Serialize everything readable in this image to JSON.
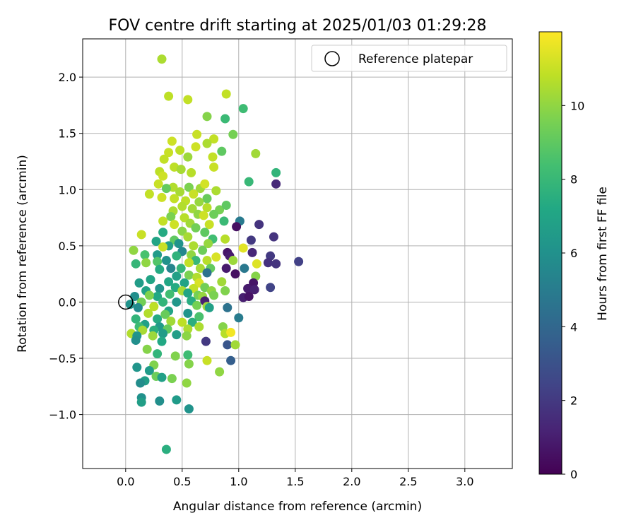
{
  "chart_data": {
    "type": "scatter",
    "title": "FOV centre drift starting at 2025/01/03 01:29:28",
    "xlabel": "Angular distance from reference (arcmin)",
    "ylabel": "Rotation from reference (arcmin)",
    "xlim": [
      -0.38,
      3.42
    ],
    "ylim": [
      -1.48,
      2.34
    ],
    "xticks": [
      0.0,
      0.5,
      1.0,
      1.5,
      2.0,
      2.5,
      3.0
    ],
    "xtick_labels": [
      "0.0",
      "0.5",
      "1.0",
      "1.5",
      "2.0",
      "2.5",
      "3.0"
    ],
    "yticks": [
      -1.0,
      -0.5,
      0.0,
      0.5,
      1.0,
      1.5,
      2.0
    ],
    "ytick_labels": [
      "−1.0",
      "−0.5",
      "0.0",
      "0.5",
      "1.0",
      "1.5",
      "2.0"
    ],
    "grid": true,
    "legend": {
      "position": "top-right",
      "entries": [
        "Reference platepar"
      ]
    },
    "reference_point": {
      "x": 0.0,
      "y": 0.0
    },
    "colorbar": {
      "label": "Hours from first FF file",
      "range": [
        0,
        12
      ],
      "ticks": [
        0,
        2,
        4,
        6,
        8,
        10
      ],
      "tick_labels": [
        "0",
        "2",
        "4",
        "6",
        "8",
        "10"
      ],
      "colormap": "viridis"
    },
    "points": [
      {
        "x": 0.32,
        "y": 2.16,
        "h": 10.5
      },
      {
        "x": 0.38,
        "y": 1.83,
        "h": 10.8
      },
      {
        "x": 0.55,
        "y": 1.8,
        "h": 10.9
      },
      {
        "x": 0.89,
        "y": 1.85,
        "h": 10.9
      },
      {
        "x": 1.04,
        "y": 1.72,
        "h": 8.2
      },
      {
        "x": 0.88,
        "y": 1.63,
        "h": 8.1
      },
      {
        "x": 0.72,
        "y": 1.65,
        "h": 9.8
      },
      {
        "x": 0.95,
        "y": 1.49,
        "h": 9.5
      },
      {
        "x": 0.63,
        "y": 1.49,
        "h": 11.0
      },
      {
        "x": 0.78,
        "y": 1.45,
        "h": 10.9
      },
      {
        "x": 0.41,
        "y": 1.43,
        "h": 11.1
      },
      {
        "x": 0.85,
        "y": 1.34,
        "h": 9.0
      },
      {
        "x": 1.15,
        "y": 1.32,
        "h": 10.3
      },
      {
        "x": 0.38,
        "y": 1.33,
        "h": 11.0
      },
      {
        "x": 0.48,
        "y": 1.35,
        "h": 10.8
      },
      {
        "x": 0.62,
        "y": 1.38,
        "h": 11.1
      },
      {
        "x": 0.72,
        "y": 1.41,
        "h": 10.5
      },
      {
        "x": 0.34,
        "y": 1.27,
        "h": 10.9
      },
      {
        "x": 0.55,
        "y": 1.29,
        "h": 10.2
      },
      {
        "x": 0.43,
        "y": 1.2,
        "h": 10.8
      },
      {
        "x": 0.77,
        "y": 1.29,
        "h": 10.9
      },
      {
        "x": 0.78,
        "y": 1.2,
        "h": 11.0
      },
      {
        "x": 1.33,
        "y": 1.15,
        "h": 7.8
      },
      {
        "x": 0.3,
        "y": 1.16,
        "h": 10.8
      },
      {
        "x": 0.49,
        "y": 1.18,
        "h": 10.4
      },
      {
        "x": 0.58,
        "y": 1.15,
        "h": 10.7
      },
      {
        "x": 0.33,
        "y": 1.12,
        "h": 11.1
      },
      {
        "x": 1.09,
        "y": 1.07,
        "h": 8.0
      },
      {
        "x": 1.33,
        "y": 1.05,
        "h": 1.4
      },
      {
        "x": 0.29,
        "y": 1.05,
        "h": 11.0
      },
      {
        "x": 0.42,
        "y": 1.02,
        "h": 10.6
      },
      {
        "x": 0.36,
        "y": 1.01,
        "h": 9.1
      },
      {
        "x": 0.56,
        "y": 1.02,
        "h": 9.6
      },
      {
        "x": 0.66,
        "y": 1.01,
        "h": 10.3
      },
      {
        "x": 0.7,
        "y": 1.05,
        "h": 11.2
      },
      {
        "x": 0.8,
        "y": 0.99,
        "h": 10.5
      },
      {
        "x": 0.21,
        "y": 0.96,
        "h": 10.9
      },
      {
        "x": 0.6,
        "y": 0.96,
        "h": 11.0
      },
      {
        "x": 0.48,
        "y": 0.98,
        "h": 10.4
      },
      {
        "x": 0.32,
        "y": 0.93,
        "h": 11.1
      },
      {
        "x": 0.43,
        "y": 0.92,
        "h": 10.9
      },
      {
        "x": 0.53,
        "y": 0.9,
        "h": 10.8
      },
      {
        "x": 0.72,
        "y": 0.92,
        "h": 9.2
      },
      {
        "x": 0.65,
        "y": 0.89,
        "h": 10.1
      },
      {
        "x": 0.5,
        "y": 0.85,
        "h": 10.6
      },
      {
        "x": 0.59,
        "y": 0.83,
        "h": 10.3
      },
      {
        "x": 0.42,
        "y": 0.81,
        "h": 10.5
      },
      {
        "x": 0.72,
        "y": 0.84,
        "h": 10.7
      },
      {
        "x": 0.83,
        "y": 0.82,
        "h": 9.5
      },
      {
        "x": 0.89,
        "y": 0.86,
        "h": 9.0
      },
      {
        "x": 0.78,
        "y": 0.78,
        "h": 9.3
      },
      {
        "x": 0.64,
        "y": 0.78,
        "h": 10.0
      },
      {
        "x": 0.52,
        "y": 0.75,
        "h": 10.7
      },
      {
        "x": 0.4,
        "y": 0.76,
        "h": 9.6
      },
      {
        "x": 0.69,
        "y": 0.77,
        "h": 11.1
      },
      {
        "x": 0.33,
        "y": 0.72,
        "h": 10.9
      },
      {
        "x": 0.43,
        "y": 0.69,
        "h": 11.1
      },
      {
        "x": 0.57,
        "y": 0.7,
        "h": 10.3
      },
      {
        "x": 0.74,
        "y": 0.69,
        "h": 11.0
      },
      {
        "x": 0.87,
        "y": 0.72,
        "h": 8.1
      },
      {
        "x": 1.01,
        "y": 0.72,
        "h": 4.9
      },
      {
        "x": 0.98,
        "y": 0.67,
        "h": 0.5
      },
      {
        "x": 1.18,
        "y": 0.69,
        "h": 1.8
      },
      {
        "x": 0.62,
        "y": 0.66,
        "h": 9.4
      },
      {
        "x": 0.5,
        "y": 0.63,
        "h": 9.9
      },
      {
        "x": 0.7,
        "y": 0.62,
        "h": 9.0
      },
      {
        "x": 0.33,
        "y": 0.62,
        "h": 7.3
      },
      {
        "x": 0.14,
        "y": 0.6,
        "h": 11.0
      },
      {
        "x": 0.27,
        "y": 0.54,
        "h": 7.0
      },
      {
        "x": 0.43,
        "y": 0.55,
        "h": 9.0
      },
      {
        "x": 0.55,
        "y": 0.58,
        "h": 10.4
      },
      {
        "x": 0.77,
        "y": 0.56,
        "h": 8.3
      },
      {
        "x": 0.88,
        "y": 0.56,
        "h": 10.7
      },
      {
        "x": 1.11,
        "y": 0.55,
        "h": 2.0
      },
      {
        "x": 1.31,
        "y": 0.58,
        "h": 1.8
      },
      {
        "x": 0.38,
        "y": 0.5,
        "h": 6.8
      },
      {
        "x": 0.47,
        "y": 0.52,
        "h": 6.1
      },
      {
        "x": 0.6,
        "y": 0.5,
        "h": 10.5
      },
      {
        "x": 0.73,
        "y": 0.52,
        "h": 10.1
      },
      {
        "x": 0.33,
        "y": 0.49,
        "h": 11.0
      },
      {
        "x": 1.04,
        "y": 0.48,
        "h": 11.5
      },
      {
        "x": 0.07,
        "y": 0.46,
        "h": 10.0
      },
      {
        "x": 0.5,
        "y": 0.45,
        "h": 5.5
      },
      {
        "x": 0.68,
        "y": 0.46,
        "h": 9.3
      },
      {
        "x": 0.9,
        "y": 0.44,
        "h": 0.7
      },
      {
        "x": 1.12,
        "y": 0.44,
        "h": 1.3
      },
      {
        "x": 0.17,
        "y": 0.42,
        "h": 8.5
      },
      {
        "x": 0.28,
        "y": 0.42,
        "h": 6.5
      },
      {
        "x": 0.45,
        "y": 0.41,
        "h": 7.7
      },
      {
        "x": 0.58,
        "y": 0.42,
        "h": 10.0
      },
      {
        "x": 0.8,
        "y": 0.4,
        "h": 11.3
      },
      {
        "x": 0.92,
        "y": 0.41,
        "h": 0.9
      },
      {
        "x": 1.28,
        "y": 0.41,
        "h": 2.0
      },
      {
        "x": 0.95,
        "y": 0.37,
        "h": 10.2
      },
      {
        "x": 0.72,
        "y": 0.37,
        "h": 10.7
      },
      {
        "x": 0.62,
        "y": 0.37,
        "h": 8.0
      },
      {
        "x": 0.36,
        "y": 0.37,
        "h": 6.1
      },
      {
        "x": 0.28,
        "y": 0.36,
        "h": 8.7
      },
      {
        "x": 0.18,
        "y": 0.35,
        "h": 10.0
      },
      {
        "x": 0.09,
        "y": 0.34,
        "h": 7.9
      },
      {
        "x": 0.56,
        "y": 0.35,
        "h": 10.9
      },
      {
        "x": 1.16,
        "y": 0.34,
        "h": 11.4
      },
      {
        "x": 1.26,
        "y": 0.35,
        "h": 1.7
      },
      {
        "x": 1.33,
        "y": 0.34,
        "h": 1.8
      },
      {
        "x": 1.53,
        "y": 0.36,
        "h": 2.3
      },
      {
        "x": 1.05,
        "y": 0.3,
        "h": 4.8
      },
      {
        "x": 0.89,
        "y": 0.3,
        "h": 0.9
      },
      {
        "x": 0.75,
        "y": 0.3,
        "h": 9.1
      },
      {
        "x": 0.66,
        "y": 0.3,
        "h": 10.4
      },
      {
        "x": 0.49,
        "y": 0.3,
        "h": 7.9
      },
      {
        "x": 0.4,
        "y": 0.3,
        "h": 5.4
      },
      {
        "x": 0.3,
        "y": 0.29,
        "h": 7.3
      },
      {
        "x": 0.97,
        "y": 0.25,
        "h": 0.5
      },
      {
        "x": 0.72,
        "y": 0.26,
        "h": 4.5
      },
      {
        "x": 0.56,
        "y": 0.24,
        "h": 9.6
      },
      {
        "x": 0.45,
        "y": 0.23,
        "h": 6.8
      },
      {
        "x": 0.63,
        "y": 0.22,
        "h": 10.6
      },
      {
        "x": 0.22,
        "y": 0.2,
        "h": 7.0
      },
      {
        "x": 1.15,
        "y": 0.23,
        "h": 9.8
      },
      {
        "x": 0.85,
        "y": 0.18,
        "h": 10.3
      },
      {
        "x": 0.65,
        "y": 0.17,
        "h": 11.3
      },
      {
        "x": 0.52,
        "y": 0.17,
        "h": 6.9
      },
      {
        "x": 0.38,
        "y": 0.18,
        "h": 7.1
      },
      {
        "x": 0.12,
        "y": 0.17,
        "h": 6.6
      },
      {
        "x": 1.13,
        "y": 0.17,
        "h": 0.7
      },
      {
        "x": 0.7,
        "y": 0.13,
        "h": 9.4
      },
      {
        "x": 0.6,
        "y": 0.12,
        "h": 10.9
      },
      {
        "x": 0.44,
        "y": 0.13,
        "h": 7.3
      },
      {
        "x": 0.3,
        "y": 0.12,
        "h": 6.2
      },
      {
        "x": 1.08,
        "y": 0.12,
        "h": 0.9
      },
      {
        "x": 1.28,
        "y": 0.13,
        "h": 2.4
      },
      {
        "x": 1.14,
        "y": 0.11,
        "h": 1.1
      },
      {
        "x": 0.88,
        "y": 0.1,
        "h": 9.7
      },
      {
        "x": 0.76,
        "y": 0.1,
        "h": 10.0
      },
      {
        "x": 0.5,
        "y": 0.1,
        "h": 10.4
      },
      {
        "x": 0.18,
        "y": 0.1,
        "h": 6.9
      },
      {
        "x": 0.55,
        "y": 0.08,
        "h": 7.0
      },
      {
        "x": 0.39,
        "y": 0.07,
        "h": 8.3
      },
      {
        "x": 0.64,
        "y": 0.06,
        "h": 9.5
      },
      {
        "x": 0.68,
        "y": 0.05,
        "h": 10.1
      },
      {
        "x": 0.78,
        "y": 0.06,
        "h": 9.6
      },
      {
        "x": 0.28,
        "y": 0.05,
        "h": 7.2
      },
      {
        "x": 0.08,
        "y": 0.05,
        "h": 5.9
      },
      {
        "x": 0.21,
        "y": 0.06,
        "h": 9.7
      },
      {
        "x": 1.04,
        "y": 0.04,
        "h": 1.0
      },
      {
        "x": 1.09,
        "y": 0.05,
        "h": 0.6
      },
      {
        "x": 0.7,
        "y": 0.01,
        "h": 1.1
      },
      {
        "x": 0.58,
        "y": 0.01,
        "h": 7.4
      },
      {
        "x": 0.45,
        "y": 0.0,
        "h": 6.3
      },
      {
        "x": 0.33,
        "y": 0.0,
        "h": 7.8
      },
      {
        "x": 0.14,
        "y": 0.0,
        "h": 9.4
      },
      {
        "x": 0.04,
        "y": -0.02,
        "h": 6.1
      },
      {
        "x": 0.63,
        "y": -0.03,
        "h": 9.5
      },
      {
        "x": 0.72,
        "y": -0.04,
        "h": 10.2
      },
      {
        "x": 0.9,
        "y": -0.05,
        "h": 4.5
      },
      {
        "x": 0.25,
        "y": -0.04,
        "h": 10.8
      },
      {
        "x": 0.11,
        "y": -0.05,
        "h": 5.7
      },
      {
        "x": 0.38,
        "y": -0.08,
        "h": 7.0
      },
      {
        "x": 0.2,
        "y": -0.1,
        "h": 10.6
      },
      {
        "x": 0.55,
        "y": -0.1,
        "h": 6.2
      },
      {
        "x": 0.74,
        "y": -0.05,
        "h": 6.8
      },
      {
        "x": 0.35,
        "y": -0.11,
        "h": 9.2
      },
      {
        "x": 0.65,
        "y": -0.13,
        "h": 8.5
      },
      {
        "x": 1.0,
        "y": -0.14,
        "h": 5.0
      },
      {
        "x": 0.09,
        "y": -0.15,
        "h": 7.8
      },
      {
        "x": 0.28,
        "y": -0.15,
        "h": 7.3
      },
      {
        "x": 0.4,
        "y": -0.17,
        "h": 10.3
      },
      {
        "x": 0.5,
        "y": -0.18,
        "h": 10.8
      },
      {
        "x": 0.59,
        "y": -0.18,
        "h": 7.5
      },
      {
        "x": 0.17,
        "y": -0.2,
        "h": 6.8
      },
      {
        "x": 0.86,
        "y": -0.22,
        "h": 9.8
      },
      {
        "x": 0.12,
        "y": -0.22,
        "h": 8.2
      },
      {
        "x": 0.3,
        "y": -0.22,
        "h": 6.5
      },
      {
        "x": 0.37,
        "y": -0.24,
        "h": 9.1
      },
      {
        "x": 0.55,
        "y": -0.24,
        "h": 10.5
      },
      {
        "x": 0.65,
        "y": -0.22,
        "h": 10.5
      },
      {
        "x": 0.15,
        "y": -0.25,
        "h": 10.4
      },
      {
        "x": 0.25,
        "y": -0.25,
        "h": 7.5
      },
      {
        "x": 0.05,
        "y": -0.28,
        "h": 10.6
      },
      {
        "x": 0.33,
        "y": -0.28,
        "h": 6.6
      },
      {
        "x": 0.45,
        "y": -0.29,
        "h": 6.7
      },
      {
        "x": 0.1,
        "y": -0.3,
        "h": 6.2
      },
      {
        "x": 0.24,
        "y": -0.3,
        "h": 10.2
      },
      {
        "x": 0.54,
        "y": -0.3,
        "h": 9.9
      },
      {
        "x": 0.88,
        "y": -0.28,
        "h": 10.7
      },
      {
        "x": 0.93,
        "y": -0.27,
        "h": 11.8
      },
      {
        "x": 0.09,
        "y": -0.34,
        "h": 5.9
      },
      {
        "x": 0.32,
        "y": -0.35,
        "h": 7.2
      },
      {
        "x": 0.71,
        "y": -0.35,
        "h": 2.0
      },
      {
        "x": 0.9,
        "y": -0.38,
        "h": 3.2
      },
      {
        "x": 0.97,
        "y": -0.38,
        "h": 10.3
      },
      {
        "x": 0.19,
        "y": -0.42,
        "h": 9.8
      },
      {
        "x": 0.28,
        "y": -0.46,
        "h": 7.8
      },
      {
        "x": 0.44,
        "y": -0.48,
        "h": 9.7
      },
      {
        "x": 0.55,
        "y": -0.47,
        "h": 8.2
      },
      {
        "x": 0.72,
        "y": -0.52,
        "h": 11.0
      },
      {
        "x": 0.93,
        "y": -0.52,
        "h": 3.6
      },
      {
        "x": 0.56,
        "y": -0.55,
        "h": 9.8
      },
      {
        "x": 0.25,
        "y": -0.56,
        "h": 9.7
      },
      {
        "x": 0.1,
        "y": -0.58,
        "h": 6.2
      },
      {
        "x": 0.83,
        "y": -0.62,
        "h": 10.0
      },
      {
        "x": 0.21,
        "y": -0.61,
        "h": 6.5
      },
      {
        "x": 0.27,
        "y": -0.66,
        "h": 9.3
      },
      {
        "x": 0.32,
        "y": -0.67,
        "h": 6.8
      },
      {
        "x": 0.41,
        "y": -0.68,
        "h": 9.6
      },
      {
        "x": 0.17,
        "y": -0.7,
        "h": 6.7
      },
      {
        "x": 0.13,
        "y": -0.72,
        "h": 5.8
      },
      {
        "x": 0.54,
        "y": -0.72,
        "h": 10.0
      },
      {
        "x": 0.14,
        "y": -0.85,
        "h": 6.0
      },
      {
        "x": 0.3,
        "y": -0.88,
        "h": 5.9
      },
      {
        "x": 0.45,
        "y": -0.87,
        "h": 6.5
      },
      {
        "x": 0.14,
        "y": -0.89,
        "h": 6.7
      },
      {
        "x": 0.56,
        "y": -0.95,
        "h": 6.1
      },
      {
        "x": 0.36,
        "y": -1.31,
        "h": 7.5
      }
    ]
  }
}
